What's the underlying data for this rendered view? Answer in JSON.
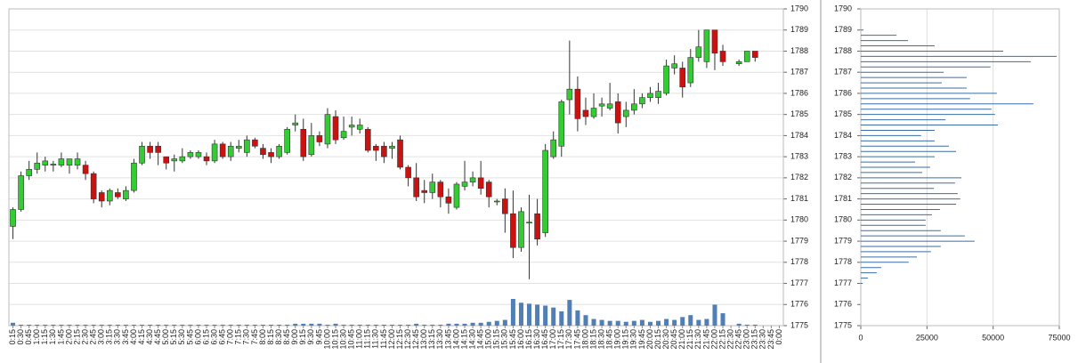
{
  "chart_data": [
    {
      "type": "candlestick",
      "categories": [
        "0:15",
        "0:30",
        "0:45",
        "1:00",
        "1:15",
        "1:30",
        "1:45",
        "2:00",
        "2:15",
        "2:30",
        "2:45",
        "3:00",
        "3:15",
        "3:30",
        "3:45",
        "4:00",
        "4:15",
        "4:30",
        "4:45",
        "5:00",
        "5:15",
        "5:30",
        "5:45",
        "6:00",
        "6:15",
        "6:30",
        "6:45",
        "7:00",
        "7:15",
        "7:30",
        "7:45",
        "8:00",
        "8:15",
        "8:30",
        "8:45",
        "9:00",
        "9:15",
        "9:30",
        "9:45",
        "10:00",
        "10:15",
        "10:30",
        "10:45",
        "11:00",
        "11:15",
        "11:30",
        "11:45",
        "12:00",
        "12:15",
        "12:30",
        "12:45",
        "13:00",
        "13:15",
        "13:30",
        "13:45",
        "14:00",
        "14:15",
        "14:30",
        "14:45",
        "15:00",
        "15:15",
        "15:30",
        "15:45",
        "16:00",
        "16:15",
        "16:30",
        "16:45",
        "17:00",
        "17:15",
        "17:30",
        "17:45",
        "18:00",
        "18:15",
        "18:30",
        "18:45",
        "19:00",
        "19:15",
        "19:30",
        "19:45",
        "20:00",
        "20:15",
        "20:30",
        "20:45",
        "21:00",
        "21:15",
        "21:30",
        "21:45",
        "22:00",
        "22:15",
        "22:30",
        "22:45",
        "23:00",
        "23:15",
        "23:30",
        "23:45",
        "0:00"
      ],
      "open": [
        1779.7,
        1780.5,
        1782.1,
        1782.4,
        1782.6,
        1782.6,
        1782.6,
        1782.6,
        1782.6,
        1782.6,
        1782.2,
        1781.3,
        1780.9,
        1781.3,
        1781.0,
        1781.4,
        1782.7,
        1783.5,
        1783.5,
        1783.0,
        1782.8,
        1782.8,
        1783.0,
        1783.0,
        1783.0,
        1782.8,
        1783.6,
        1783.0,
        1783.4,
        1783.2,
        1783.8,
        1783.4,
        1783.2,
        1783.0,
        1783.2,
        1784.5,
        1784.3,
        1783.1,
        1784.0,
        1783.6,
        1784.9,
        1783.9,
        1784.4,
        1784.3,
        1784.3,
        1783.5,
        1783.5,
        1783.4,
        1783.8,
        1782.5,
        1782.0,
        1781.4,
        1781.3,
        1781.8,
        1781.1,
        1780.6,
        1781.6,
        1781.8,
        1782.0,
        1781.8,
        1780.9,
        1781.0,
        1780.3,
        1778.7,
        1779.9,
        1780.3,
        1779.4,
        1783.0,
        1783.5,
        1785.7,
        1786.2,
        1785.2,
        1784.9,
        1785.4,
        1785.3,
        1785.6,
        1784.9,
        1785.2,
        1785.5,
        1785.8,
        1785.8,
        1786.0,
        1787.2,
        1787.2,
        1786.5,
        1787.7,
        1787.5,
        1789.0,
        1788.0,
        null,
        1787.4,
        1787.5,
        1788.0,
        null,
        null,
        null
      ],
      "high": [
        1780.6,
        1782.3,
        1782.8,
        1783.2,
        1783.0,
        1782.8,
        1783.2,
        1782.9,
        1783.2,
        1782.8,
        1782.3,
        1781.4,
        1781.5,
        1781.5,
        1781.6,
        1782.9,
        1783.7,
        1783.7,
        1783.7,
        1783.0,
        1783.1,
        1783.4,
        1783.3,
        1783.3,
        1783.2,
        1783.8,
        1783.7,
        1783.7,
        1783.8,
        1784.0,
        1783.9,
        1783.6,
        1783.4,
        1783.6,
        1784.4,
        1785.0,
        1784.8,
        1784.6,
        1784.2,
        1785.3,
        1785.2,
        1784.9,
        1784.9,
        1784.8,
        1784.4,
        1783.6,
        1783.7,
        1783.7,
        1784.0,
        1782.6,
        1782.7,
        1781.9,
        1782.2,
        1781.9,
        1781.5,
        1781.8,
        1782.8,
        1782.3,
        1782.8,
        1781.9,
        1781.0,
        1781.5,
        1781.4,
        1780.6,
        1781.2,
        1781.0,
        1783.6,
        1784.2,
        1785.7,
        1788.5,
        1786.8,
        1785.8,
        1786.0,
        1785.8,
        1786.5,
        1786.0,
        1785.6,
        1786.2,
        1786.0,
        1786.3,
        1786.5,
        1787.6,
        1787.8,
        1787.5,
        1788.1,
        1789.0,
        1789.0,
        1789.0,
        1788.3,
        null,
        1787.6,
        1788.0,
        1788.0,
        null,
        null,
        null
      ],
      "low": [
        1779.1,
        1780.4,
        1781.9,
        1782.2,
        1782.3,
        1782.3,
        1782.5,
        1782.2,
        1782.4,
        1781.9,
        1780.8,
        1780.6,
        1780.7,
        1781.0,
        1780.9,
        1781.3,
        1782.6,
        1782.9,
        1782.6,
        1782.4,
        1782.3,
        1782.7,
        1782.9,
        1782.9,
        1782.6,
        1782.7,
        1782.9,
        1782.8,
        1783.2,
        1783.0,
        1783.4,
        1782.9,
        1782.7,
        1782.9,
        1783.1,
        1784.2,
        1782.8,
        1783.0,
        1783.5,
        1783.4,
        1783.6,
        1783.8,
        1784.0,
        1784.1,
        1783.2,
        1782.8,
        1782.7,
        1782.9,
        1782.4,
        1781.6,
        1780.9,
        1780.8,
        1781.0,
        1780.6,
        1780.3,
        1780.5,
        1781.4,
        1781.6,
        1781.2,
        1780.6,
        1780.7,
        1779.4,
        1778.2,
        1778.5,
        1777.2,
        1778.8,
        1779.2,
        1782.9,
        1783.0,
        1785.0,
        1784.2,
        1784.5,
        1784.8,
        1784.9,
        1785.2,
        1784.1,
        1784.4,
        1785.0,
        1785.3,
        1785.6,
        1785.5,
        1785.9,
        1786.9,
        1785.8,
        1786.3,
        1787.5,
        1787.2,
        1787.1,
        1787.3,
        null,
        1787.3,
        1787.5,
        1787.5,
        null,
        null,
        null
      ],
      "close": [
        1780.5,
        1782.1,
        1782.4,
        1782.7,
        1782.8,
        1782.65,
        1782.9,
        1782.9,
        1782.9,
        1782.2,
        1781.0,
        1780.9,
        1781.4,
        1781.1,
        1781.4,
        1782.7,
        1783.5,
        1783.2,
        1783.2,
        1782.7,
        1782.9,
        1783.0,
        1783.2,
        1783.2,
        1782.8,
        1783.6,
        1783.0,
        1783.5,
        1783.5,
        1783.8,
        1783.5,
        1783.1,
        1783.0,
        1783.5,
        1784.3,
        1784.6,
        1783.0,
        1784.0,
        1783.7,
        1785.0,
        1783.8,
        1784.2,
        1784.5,
        1784.5,
        1783.3,
        1783.3,
        1783.0,
        1783.5,
        1782.5,
        1782.0,
        1781.1,
        1781.3,
        1781.8,
        1781.1,
        1780.8,
        1781.7,
        1781.8,
        1782.0,
        1781.5,
        1781.1,
        1780.9,
        1780.3,
        1778.7,
        1780.4,
        1779.9,
        1779.1,
        1783.3,
        1783.8,
        1785.6,
        1786.2,
        1784.8,
        1784.9,
        1785.3,
        1785.5,
        1785.5,
        1784.6,
        1785.2,
        1785.5,
        1785.8,
        1786.0,
        1786.1,
        1787.3,
        1787.4,
        1786.3,
        1787.7,
        1788.2,
        1789.0,
        1787.9,
        1787.5,
        null,
        1787.5,
        1788.0,
        1787.7,
        null,
        null,
        null
      ],
      "volume": [
        300,
        100,
        100,
        100,
        100,
        100,
        100,
        100,
        100,
        100,
        100,
        100,
        100,
        100,
        100,
        100,
        100,
        100,
        100,
        100,
        100,
        100,
        100,
        100,
        100,
        100,
        100,
        100,
        100,
        100,
        100,
        100,
        100,
        100,
        100,
        200,
        200,
        200,
        200,
        100,
        200,
        100,
        100,
        100,
        100,
        100,
        100,
        100,
        100,
        100,
        200,
        100,
        100,
        100,
        200,
        200,
        200,
        300,
        300,
        400,
        500,
        600,
        2800,
        2400,
        2300,
        2200,
        2100,
        1900,
        1500,
        2700,
        1600,
        1100,
        700,
        600,
        500,
        500,
        400,
        500,
        600,
        400,
        500,
        700,
        600,
        900,
        1100,
        600,
        700,
        2200,
        1300,
        null,
        200,
        100,
        100,
        null,
        null,
        null
      ],
      "up_color": "#33cc33",
      "down_color": "#cc1111",
      "volume_color": "#4f7fb5",
      "ylim": [
        1775,
        1790
      ],
      "yticks": [
        1775,
        1776,
        1777,
        1778,
        1779,
        1780,
        1781,
        1782,
        1783,
        1784,
        1785,
        1786,
        1787,
        1788,
        1789,
        1790
      ],
      "grid": true
    },
    {
      "type": "barh",
      "y": [
        1789,
        1788.75,
        1788.5,
        1788.25,
        1788,
        1787.75,
        1787.5,
        1787.25,
        1787,
        1786.75,
        1786.5,
        1786.25,
        1786,
        1785.75,
        1785.5,
        1785.25,
        1785,
        1784.75,
        1784.5,
        1784.25,
        1784,
        1783.75,
        1783.5,
        1783.25,
        1783,
        1782.75,
        1782.5,
        1782.25,
        1782,
        1781.75,
        1781.5,
        1781.25,
        1781,
        1780.75,
        1780.5,
        1780.25,
        1780,
        1779.75,
        1779.5,
        1779.25,
        1779,
        1778.75,
        1778.5,
        1778.25,
        1778,
        1777.75,
        1777.5,
        1777.25,
        1777
      ],
      "values": [
        1000,
        13500,
        17800,
        27900,
        53800,
        74000,
        64200,
        49000,
        31300,
        40000,
        30600,
        40000,
        51400,
        41300,
        65200,
        49400,
        50700,
        32000,
        51800,
        27900,
        22800,
        27900,
        33300,
        36000,
        27900,
        20500,
        26200,
        23200,
        38000,
        35600,
        27600,
        36600,
        37600,
        36000,
        29900,
        26900,
        24500,
        24500,
        30200,
        39300,
        43000,
        30200,
        26500,
        21200,
        18100,
        7700,
        6000,
        2700,
        700
      ],
      "color": "#3a6ea5",
      "ylim": [
        1775,
        1790
      ],
      "yticks": [
        1775,
        1776,
        1777,
        1778,
        1779,
        1780,
        1781,
        1782,
        1783,
        1784,
        1785,
        1786,
        1787,
        1788,
        1789,
        1790
      ],
      "xlim": [
        0,
        75000
      ],
      "xticks": [
        0,
        25000,
        50000,
        75000
      ],
      "grid": true
    }
  ]
}
